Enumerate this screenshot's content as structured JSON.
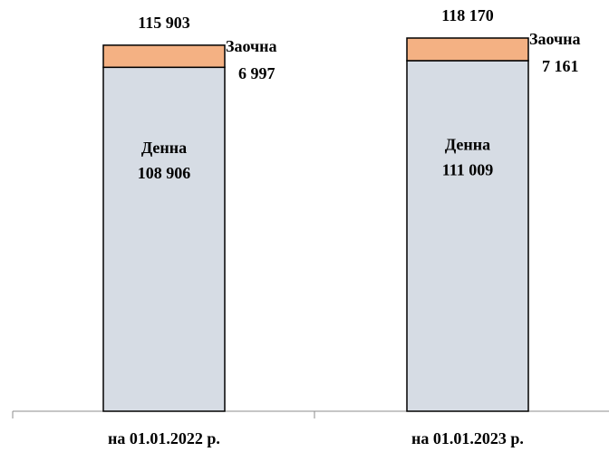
{
  "chart_data": {
    "type": "bar",
    "stacked": true,
    "categories": [
      "на 01.01.2022 р.",
      "на 01.01.2023 р."
    ],
    "series": [
      {
        "name": "Денна",
        "values": [
          108906,
          111009
        ],
        "labels": [
          "108 906",
          "111 009"
        ],
        "color": "#d6dce4"
      },
      {
        "name": "Заочна",
        "values": [
          6997,
          7161
        ],
        "labels": [
          "6 997",
          "7 161"
        ],
        "color": "#f4b183"
      }
    ],
    "totals": [
      115903,
      118170
    ],
    "total_labels": [
      "115 903",
      "118 170"
    ],
    "ylim": [
      0,
      118170
    ],
    "grid": false,
    "legend": "none"
  }
}
